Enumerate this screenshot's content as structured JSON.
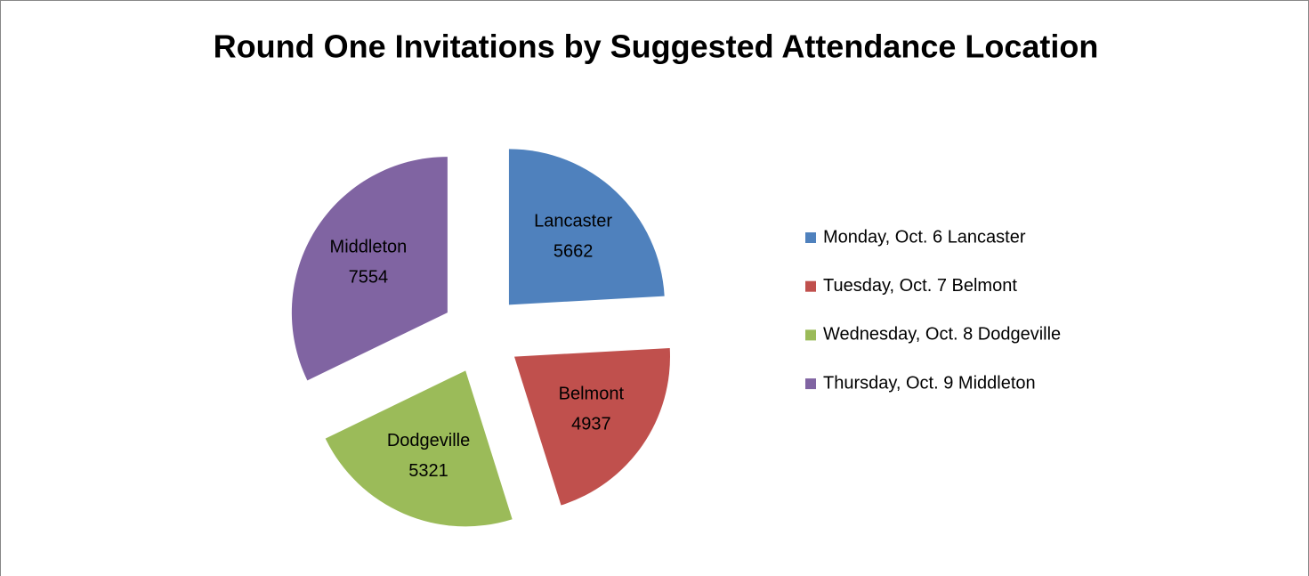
{
  "chart_data": {
    "type": "pie",
    "title": "Round One Invitations by Suggested Attendance Location",
    "categories": [
      "Monday, Oct. 6 Lancaster",
      "Tuesday, Oct. 7 Belmont",
      "Wednesday, Oct. 8 Dodgeville",
      "Thursday, Oct. 9 Middleton"
    ],
    "labels": [
      "Lancaster",
      "Belmont",
      "Dodgeville",
      "Middleton"
    ],
    "values": [
      5662,
      4937,
      5321,
      7554
    ],
    "colors": [
      "#4f81bd",
      "#c0504d",
      "#9bbb59",
      "#8064a2"
    ],
    "exploded": true,
    "legend": "right"
  }
}
